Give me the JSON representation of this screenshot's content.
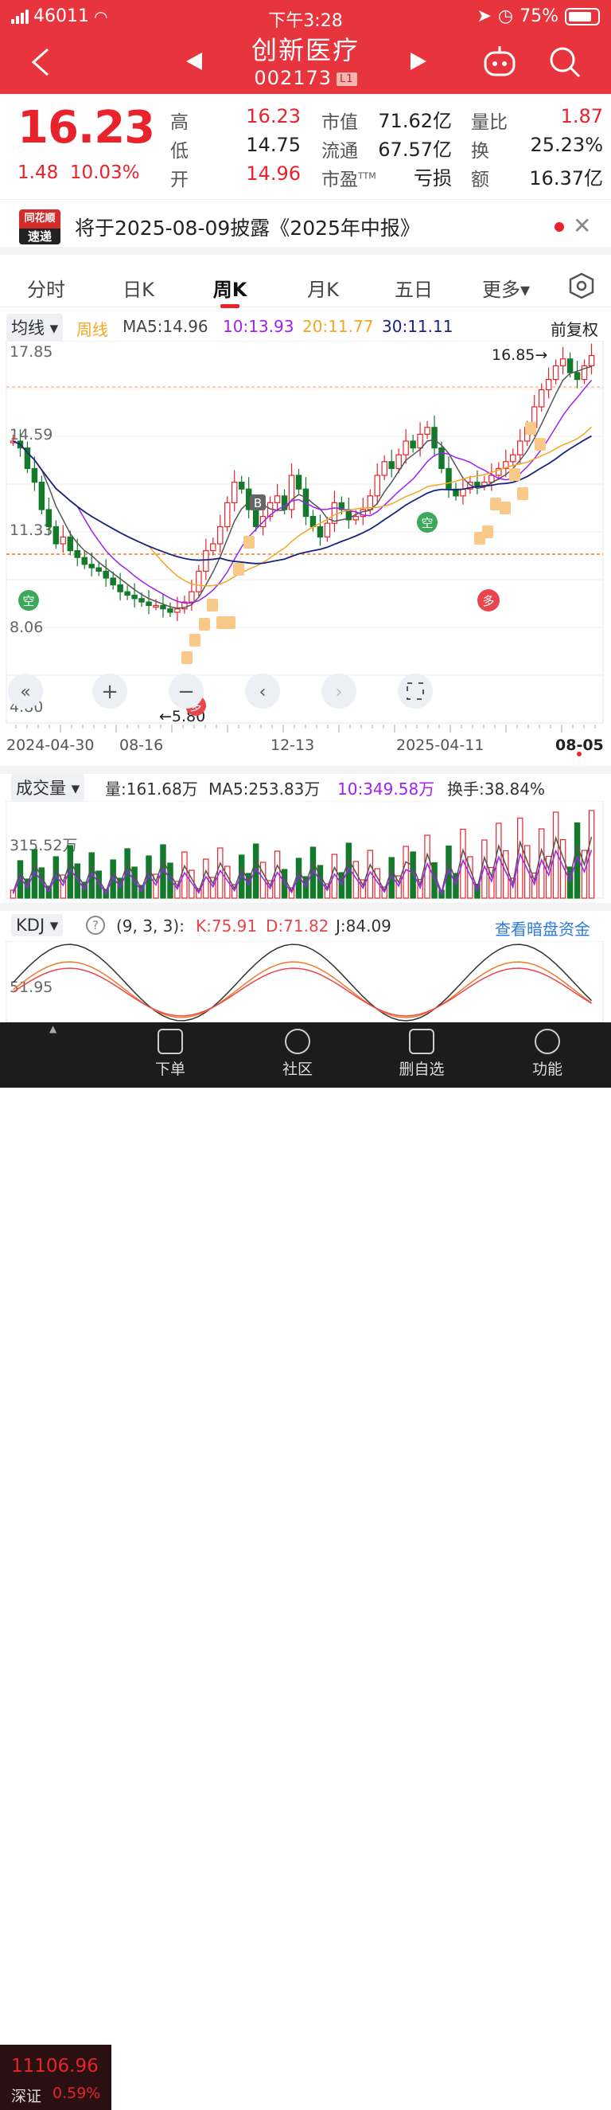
{
  "status_bar": {
    "carrier": "46011",
    "time": "下午3:28",
    "battery": "75%"
  },
  "header": {
    "title": "创新医疗",
    "code": "002173",
    "level_badge": "L1"
  },
  "quote": {
    "price": "16.23",
    "change": "1.48",
    "change_pct": "10.03%",
    "high_label": "高",
    "high": "16.23",
    "low_label": "低",
    "low": "14.75",
    "open_label": "开",
    "open": "14.96",
    "mcap_label": "市值",
    "mcap": "71.62亿",
    "float_label": "流通",
    "float": "67.57亿",
    "pe_label": "市盈",
    "pe_sup": "TTM",
    "pe": "亏损",
    "vr_label": "量比",
    "vr": "1.87",
    "turnover_label": "换",
    "turnover": "25.23%",
    "amount_label": "额",
    "amount": "16.37亿"
  },
  "notice": {
    "logo_top": "同花顺",
    "logo_bottom": "速递",
    "text": "将于2025-08-09披露《2025年中报》"
  },
  "tabs": [
    {
      "label": "分时"
    },
    {
      "label": "日K"
    },
    {
      "label": "周K"
    },
    {
      "label": "月K"
    },
    {
      "label": "五日"
    },
    {
      "label": "更多▾"
    }
  ],
  "ma_bar": {
    "indicator": "均线 ▾",
    "period": "周线",
    "ma5": "MA5:14.96",
    "ma10": "10:13.93",
    "ma20": "20:11.77",
    "ma30": "30:11.11",
    "adjust": "前复权"
  },
  "kchart": {
    "y_labels": [
      "17.85",
      "14.59",
      "11.33",
      "8.06",
      "4.80"
    ],
    "x_labels": [
      "2024-04-30",
      "08-16",
      "12-13",
      "2025-04-11",
      "08-05"
    ],
    "high_marker": "16.85→",
    "low_marker": "←5.80",
    "markers": {
      "buy": "B",
      "short": "空",
      "long": "多"
    }
  },
  "volume_bar": {
    "indicator": "成交量 ▾",
    "vol": "量:161.68万",
    "ma5": "MA5:253.83万",
    "ma10": "10:349.58万",
    "turnover": "换手:38.84%",
    "y_label": "315.52万"
  },
  "kdj_bar": {
    "indicator": "KDJ ▾",
    "help": "?",
    "params": "(9, 3, 3):",
    "k": "K:75.91",
    "d": "D:71.82",
    "j": "J:84.09",
    "link": "查看暗盘资金",
    "y_label": "51.95"
  },
  "bottom_nav": {
    "index_value": "11106.96",
    "index_name": "深证",
    "index_pct": "0.59%",
    "items": [
      {
        "label": "下单"
      },
      {
        "label": "社区"
      },
      {
        "label": "删自选"
      },
      {
        "label": "功能"
      }
    ]
  },
  "colors": {
    "brand": "#e8343c",
    "up": "#e8232c",
    "down": "#127a2a",
    "ma5": "#555555",
    "ma10": "#a020f0",
    "ma20": "#f5a623",
    "ma30": "#1a237e"
  }
}
